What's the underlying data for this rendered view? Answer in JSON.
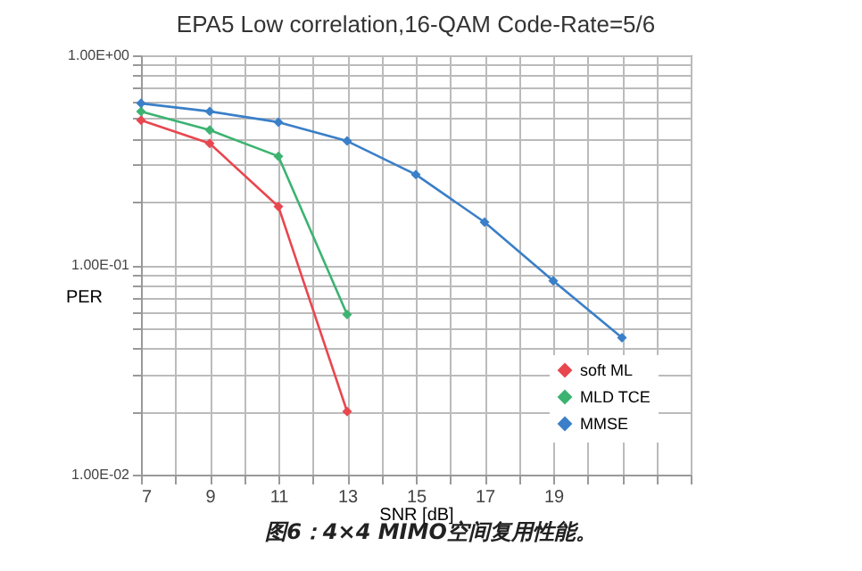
{
  "chart_data": {
    "type": "line",
    "title": "EPA5 Low correlation,16-QAM Code-Rate=5/6",
    "xlabel": "SNR [dB]",
    "ylabel": "PER",
    "annotations": [
      "图6：4×4 MIMO空间复用性能。"
    ],
    "series": [
      {
        "name": "soft ML",
        "color": "#e8474f",
        "x": [
          7,
          9,
          11,
          13
        ],
        "values": [
          0.49,
          0.38,
          0.19,
          0.02
        ]
      },
      {
        "name": "MLD TCE",
        "color": "#3cb371",
        "x": [
          7,
          9,
          11,
          13
        ],
        "values": [
          0.54,
          0.44,
          0.33,
          0.058
        ]
      },
      {
        "name": "MMSE",
        "color": "#3a7fc8",
        "x": [
          7,
          9,
          11,
          13,
          15,
          17,
          19,
          21
        ],
        "values": [
          0.59,
          0.54,
          0.48,
          0.39,
          0.27,
          0.16,
          0.084,
          0.045
        ]
      }
    ],
    "log": "y",
    "xlim": [
      7,
      23
    ],
    "xticks": [
      7,
      {
        "value": 8,
        "label": null
      },
      9,
      {
        "value": 10,
        "label": null
      },
      11,
      {
        "value": 12,
        "label": null
      },
      13,
      {
        "value": 14,
        "label": null
      },
      15,
      {
        "value": 16,
        "label": null
      },
      17,
      {
        "value": 18,
        "label": null
      },
      19,
      {
        "value": 20,
        "label": null
      },
      {
        "value": 21,
        "label": null
      },
      {
        "value": 22,
        "label": null
      },
      {
        "value": 23,
        "label": null
      }
    ],
    "ylim": [
      0.01,
      1
    ],
    "yticks": [
      {
        "value": 0.01,
        "label": "1.00E-02"
      },
      {
        "value": 0.02,
        "label": null
      },
      {
        "value": 0.03,
        "label": null
      },
      {
        "value": 0.04,
        "label": null
      },
      {
        "value": 0.05,
        "label": null
      },
      {
        "value": 0.06,
        "label": null
      },
      {
        "value": 0.07,
        "label": null
      },
      {
        "value": 0.08,
        "label": null
      },
      {
        "value": 0.09,
        "label": null
      },
      {
        "value": 0.1,
        "label": "1.00E-01"
      },
      {
        "value": 0.2,
        "label": null
      },
      {
        "value": 0.3,
        "label": null
      },
      {
        "value": 0.4,
        "label": null
      },
      {
        "value": 0.5,
        "label": null
      },
      {
        "value": 0.6,
        "label": null
      },
      {
        "value": 0.7,
        "label": null
      },
      {
        "value": 0.8,
        "label": null
      },
      {
        "value": 0.9,
        "label": null
      },
      {
        "value": 1,
        "label": "1.00E+00"
      }
    ],
    "grid": true,
    "legend": "bottom right",
    "marker": "diamond",
    "line_style": "solid"
  }
}
